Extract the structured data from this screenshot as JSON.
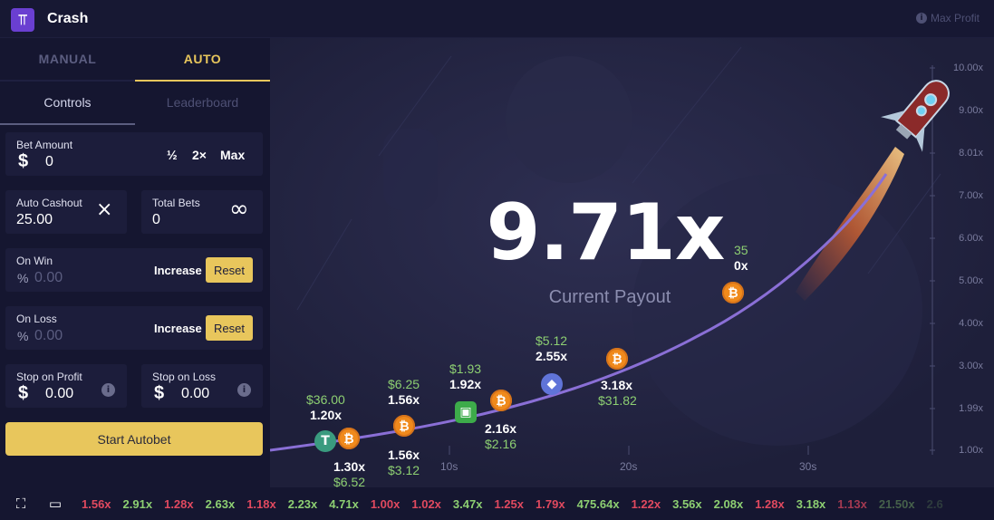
{
  "app": {
    "title": "Crash",
    "logo_icon": "crash-logo-icon",
    "max_profit": "Max Profit"
  },
  "sidebar": {
    "mode_tabs": [
      {
        "label": "MANUAL",
        "active": false
      },
      {
        "label": "AUTO",
        "active": true
      }
    ],
    "sub_tabs": [
      {
        "label": "Controls",
        "active": true
      },
      {
        "label": "Leaderboard",
        "active": false
      }
    ],
    "bet_amount": {
      "label": "Bet Amount",
      "currency": "$",
      "value": "0",
      "half": "½",
      "double": "2×",
      "max": "Max"
    },
    "auto_cashout": {
      "label": "Auto Cashout",
      "value": "25.00",
      "clear_icon": "×"
    },
    "total_bets": {
      "label": "Total Bets",
      "value": "0",
      "infinity_icon": "∞"
    },
    "on_win": {
      "label": "On Win",
      "prefix": "%",
      "placeholder": "0.00",
      "action": "Increase",
      "reset": "Reset"
    },
    "on_loss": {
      "label": "On Loss",
      "prefix": "%",
      "placeholder": "0.00",
      "action": "Increase",
      "reset": "Reset"
    },
    "stop_on_profit": {
      "label": "Stop on Profit",
      "currency": "$",
      "value": "0.00"
    },
    "stop_on_loss": {
      "label": "Stop on Loss",
      "currency": "$",
      "value": "0.00"
    },
    "start_button": "Start Autobet"
  },
  "game": {
    "payout": "9.71x",
    "payout_label": "Current Payout",
    "y_ticks": [
      "10.00x",
      "9.00x",
      "8.01x",
      "7.00x",
      "6.00x",
      "5.00x",
      "4.00x",
      "3.00x",
      "1.99x",
      "1.00x"
    ],
    "x_ticks": [
      "10s",
      "20s",
      "30s"
    ],
    "markers": [
      {
        "mult": "1.20x",
        "amount": "$36.00",
        "coin": "usdt"
      },
      {
        "mult": "1.30x",
        "amount": "$6.52",
        "coin": "btc"
      },
      {
        "mult": "1.56x",
        "amount": "$6.25",
        "coin": "btc"
      },
      {
        "mult": "1.56x",
        "amount": "$3.12",
        "coin": "btc"
      },
      {
        "mult": "1.92x",
        "amount": "$1.93",
        "coin": "cash"
      },
      {
        "mult": "2.16x",
        "amount": "$2.16",
        "coin": "btc"
      },
      {
        "mult": "2.55x",
        "amount": "$5.12",
        "coin": "eth"
      },
      {
        "mult": "3.18x",
        "amount": "$31.82",
        "coin": "btc"
      },
      {
        "mult": "0x",
        "amount": "35",
        "coin": "btc"
      }
    ],
    "coin_glyphs": {
      "btc": "₿",
      "usdt": "T",
      "eth": "◆",
      "cash": "▣"
    }
  },
  "history": {
    "fullscreen_icon": "fullscreen-icon",
    "theatre_icon": "theatre-mode-icon",
    "items": [
      {
        "value": "1.56x",
        "color": "red"
      },
      {
        "value": "2.91x",
        "color": "green"
      },
      {
        "value": "1.28x",
        "color": "red"
      },
      {
        "value": "2.63x",
        "color": "green"
      },
      {
        "value": "1.18x",
        "color": "red"
      },
      {
        "value": "2.23x",
        "color": "green"
      },
      {
        "value": "4.71x",
        "color": "green"
      },
      {
        "value": "1.00x",
        "color": "red"
      },
      {
        "value": "1.02x",
        "color": "red"
      },
      {
        "value": "3.47x",
        "color": "green"
      },
      {
        "value": "1.25x",
        "color": "red"
      },
      {
        "value": "1.79x",
        "color": "red"
      },
      {
        "value": "475.64x",
        "color": "green"
      },
      {
        "value": "1.22x",
        "color": "red"
      },
      {
        "value": "3.56x",
        "color": "green"
      },
      {
        "value": "2.08x",
        "color": "green"
      },
      {
        "value": "1.28x",
        "color": "red"
      },
      {
        "value": "3.18x",
        "color": "green"
      },
      {
        "value": "1.13x",
        "color": "red"
      },
      {
        "value": "21.50x",
        "color": "green"
      },
      {
        "value": "2.6",
        "color": "green"
      }
    ],
    "colors": {
      "red": "#e0495f",
      "green": "#8dcf72"
    }
  }
}
